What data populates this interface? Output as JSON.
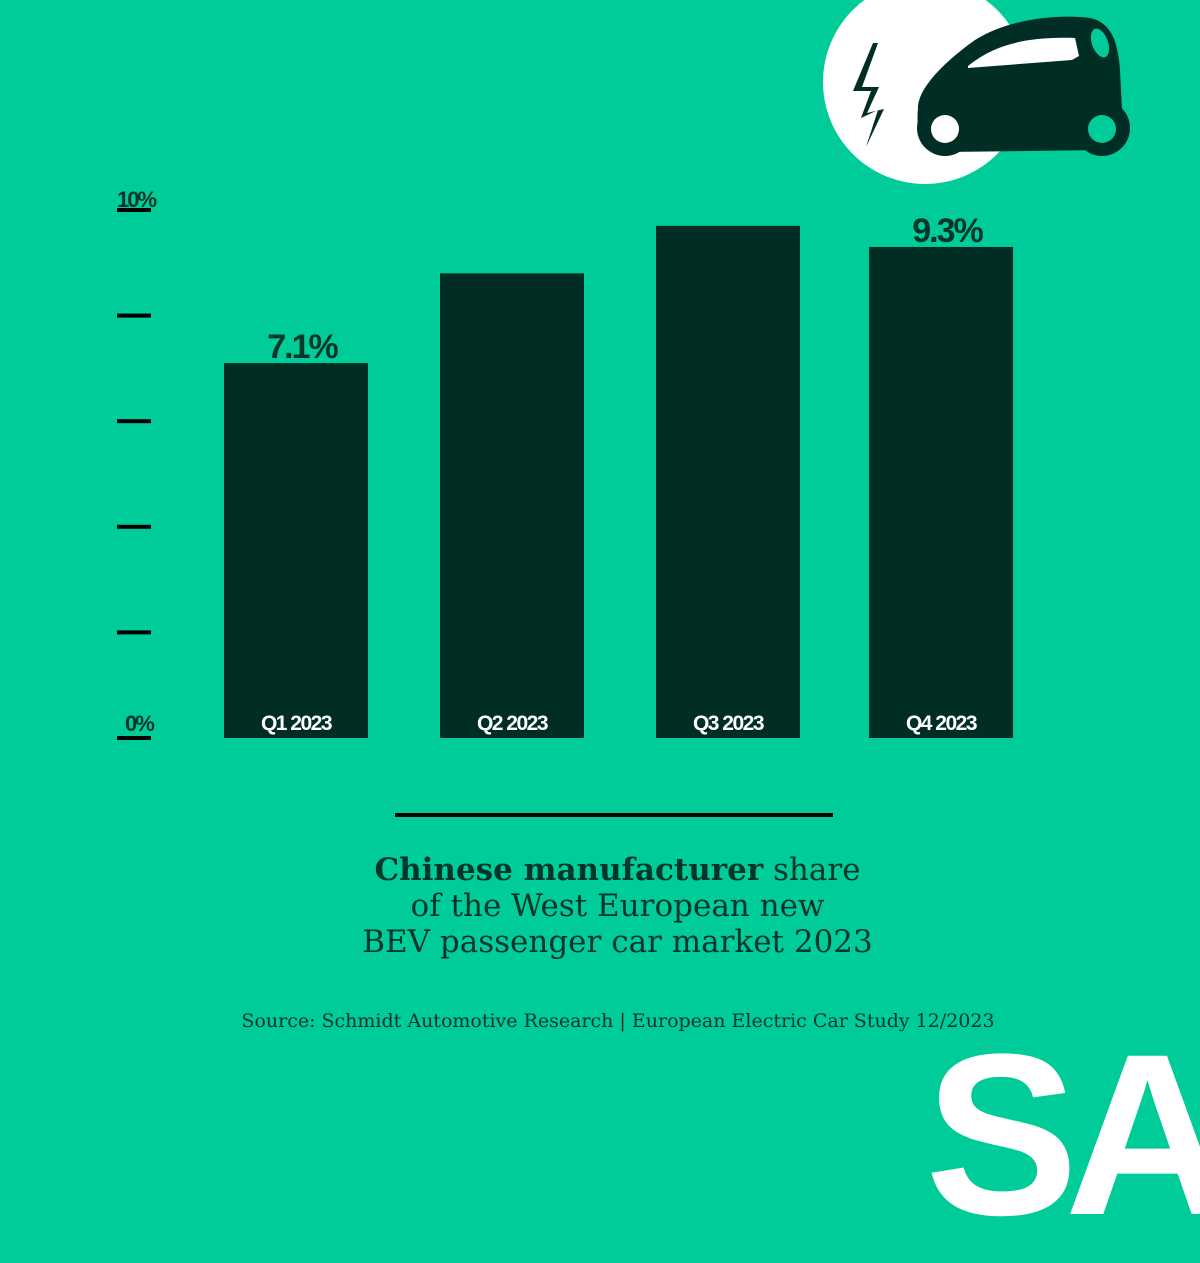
{
  "chart_data": {
    "type": "bar",
    "title": "Chinese manufacturer share of the West European new BEV passenger car market 2023",
    "title_bold": "Chinese manufacturer",
    "title_rest": [
      " share",
      "of the West European new",
      "BEV passenger car market 2023"
    ],
    "categories": [
      "Q1 2023",
      "Q2 2023",
      "Q3 2023",
      "Q4 2023"
    ],
    "values": [
      7.1,
      8.8,
      9.7,
      9.3
    ],
    "data_labels": [
      "7.1%",
      "",
      "",
      "9.3%"
    ],
    "ylim": [
      0,
      10
    ],
    "yticks": [
      0,
      2,
      4,
      6,
      8,
      10
    ],
    "ytick_labels": {
      "0": "0%",
      "10": "10%"
    },
    "xlabel": "",
    "ylabel": "",
    "colors": {
      "background": "#00cc99",
      "bar": "#002e25",
      "text": "#00352b"
    }
  },
  "source": "Source: Schmidt Automotive Research | European Electric Car Study 12/2023",
  "logo": "SA",
  "icon": "electric-car-icon"
}
